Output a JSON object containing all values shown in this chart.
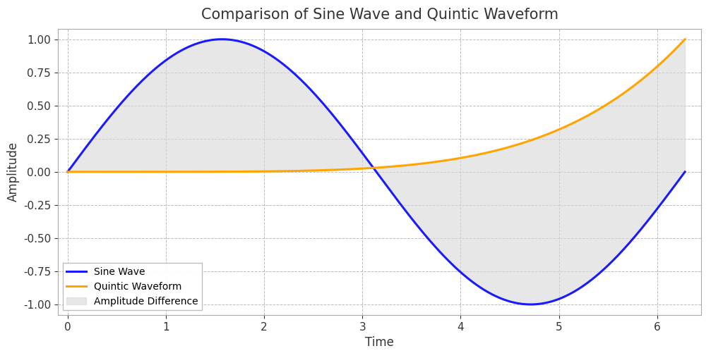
{
  "title": "Comparison of Sine Wave and Quintic Waveform",
  "xlabel": "Time",
  "ylabel": "Amplitude",
  "xlim": [
    -0.1,
    6.45
  ],
  "ylim": [
    -1.08,
    1.08
  ],
  "sine_color": "#1a1aff",
  "quintic_color": "#FFA500",
  "fill_color": "#d8d8d8",
  "fill_alpha": 0.6,
  "line_width": 2.2,
  "background_color": "#ffffff",
  "plot_bg_color": "#ffffff",
  "grid_color": "#bbbbbb",
  "legend_labels": [
    "Sine Wave",
    "Quintic Waveform",
    "Amplitude Difference"
  ],
  "title_fontsize": 15,
  "axis_label_fontsize": 12,
  "tick_fontsize": 11,
  "xticks": [
    0,
    1,
    2,
    3,
    4,
    5,
    6
  ],
  "yticks": [
    -1.0,
    -0.75,
    -0.5,
    -0.25,
    0.0,
    0.25,
    0.5,
    0.75,
    1.0
  ]
}
